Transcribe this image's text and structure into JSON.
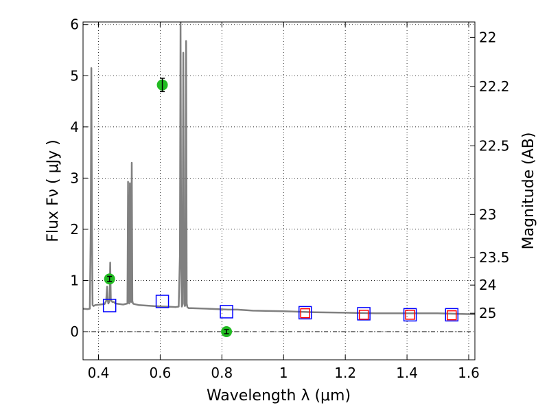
{
  "chart_data": {
    "type": "scatter",
    "title": "",
    "xlabel": "Wavelength  λ (μm)",
    "ylabel": "Flux  Fν  ( μJy )",
    "y2label": "Magnitude (AB)",
    "xlim": [
      0.35,
      1.62
    ],
    "ylim": [
      -0.55,
      6.05
    ],
    "grid": true,
    "x_ticks": [
      0.4,
      0.6,
      0.8,
      1.0,
      1.2,
      1.4,
      1.6
    ],
    "x_tick_labels": [
      "0.4",
      "0.6",
      "0.8",
      "1",
      "1.2",
      "1.4",
      "1.6"
    ],
    "y_ticks": [
      0,
      1,
      2,
      3,
      4,
      5,
      6
    ],
    "y_tick_labels": [
      "0",
      "1",
      "2",
      "3",
      "4",
      "5",
      "6"
    ],
    "y2_ticks": [
      {
        "label": "22",
        "flux": 5.75
      },
      {
        "label": "22.2",
        "flux": 4.79
      },
      {
        "label": "22.5",
        "flux": 3.63
      },
      {
        "label": "23",
        "flux": 2.29
      },
      {
        "label": "23.5",
        "flux": 1.45
      },
      {
        "label": "24",
        "flux": 0.91
      },
      {
        "label": "25",
        "flux": 0.36
      }
    ],
    "series": [
      {
        "kind": "line",
        "color": "#808080",
        "x": [
          0.35,
          0.365,
          0.372,
          0.375,
          0.377,
          0.379,
          0.381,
          0.384,
          0.39,
          0.42,
          0.425,
          0.428,
          0.43,
          0.432,
          0.436,
          0.438,
          0.44,
          0.445,
          0.45,
          0.455,
          0.48,
          0.494,
          0.496,
          0.498,
          0.5,
          0.502,
          0.504,
          0.506,
          0.508,
          0.51,
          0.512,
          0.515,
          0.53,
          0.58,
          0.62,
          0.65,
          0.66,
          0.664,
          0.666,
          0.668,
          0.67,
          0.672,
          0.675,
          0.678,
          0.68,
          0.682,
          0.684,
          0.686,
          0.688,
          0.69,
          0.692,
          0.7,
          0.75,
          0.82,
          0.85,
          0.9,
          1.0,
          1.1,
          1.2,
          1.3,
          1.4,
          1.5,
          1.62
        ],
        "y": [
          0.45,
          0.44,
          0.45,
          2.0,
          5.15,
          2.0,
          0.52,
          0.5,
          0.52,
          0.54,
          0.6,
          0.88,
          0.62,
          0.55,
          0.6,
          1.35,
          0.62,
          0.58,
          0.58,
          0.55,
          0.53,
          0.55,
          2.93,
          0.6,
          0.55,
          2.9,
          0.6,
          0.58,
          3.3,
          0.6,
          0.55,
          0.54,
          0.52,
          0.5,
          0.49,
          0.48,
          0.49,
          1.5,
          6.05,
          1.5,
          0.49,
          0.52,
          5.45,
          0.55,
          0.5,
          0.52,
          5.68,
          0.55,
          0.48,
          0.47,
          0.46,
          0.46,
          0.45,
          0.43,
          0.43,
          0.41,
          0.4,
          0.38,
          0.37,
          0.36,
          0.36,
          0.36,
          0.34
        ]
      },
      {
        "kind": "error-points",
        "color": "#22bb22",
        "x": [
          0.436,
          0.607,
          0.815
        ],
        "y": [
          1.03,
          4.82,
          0.0
        ],
        "yerr": [
          0.05,
          0.13,
          0.04
        ]
      },
      {
        "kind": "open-squares",
        "color": "#0000ff",
        "x": [
          0.436,
          0.607,
          0.815,
          1.07,
          1.26,
          1.41,
          1.545
        ],
        "y": [
          0.51,
          0.59,
          0.39,
          0.37,
          0.35,
          0.33,
          0.33
        ]
      },
      {
        "kind": "open-squares",
        "color": "#ff0000",
        "x": [
          1.07,
          1.26,
          1.41,
          1.545
        ],
        "y": [
          0.36,
          0.33,
          0.33,
          0.32
        ]
      }
    ],
    "zero_line": {
      "y": 0,
      "color": "#000000",
      "style": "dash-dot"
    }
  }
}
